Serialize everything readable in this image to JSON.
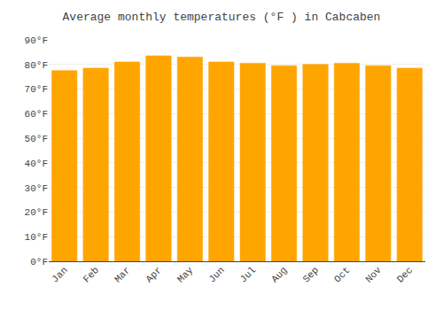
{
  "chart_data": {
    "type": "bar",
    "title": "Average monthly temperatures (°F ) in Cabcaben",
    "categories": [
      "Jan",
      "Feb",
      "Mar",
      "Apr",
      "May",
      "Jun",
      "Jul",
      "Aug",
      "Sep",
      "Oct",
      "Nov",
      "Dec"
    ],
    "values": [
      77.5,
      78.5,
      81.0,
      83.5,
      83.0,
      81.0,
      80.5,
      79.5,
      80.0,
      80.5,
      79.5,
      78.5
    ],
    "color": "#FFA500",
    "ylim": [
      0,
      90
    ],
    "yticks": [
      {
        "value": 0,
        "label": "0°F"
      },
      {
        "value": 10,
        "label": "10°F"
      },
      {
        "value": 20,
        "label": "20°F"
      },
      {
        "value": 30,
        "label": "30°F"
      },
      {
        "value": 40,
        "label": "40°F"
      },
      {
        "value": 50,
        "label": "50°F"
      },
      {
        "value": 60,
        "label": "60°F"
      },
      {
        "value": 70,
        "label": "70°F"
      },
      {
        "value": 80,
        "label": "80°F"
      },
      {
        "value": 90,
        "label": "90°F"
      }
    ],
    "grid": true
  }
}
